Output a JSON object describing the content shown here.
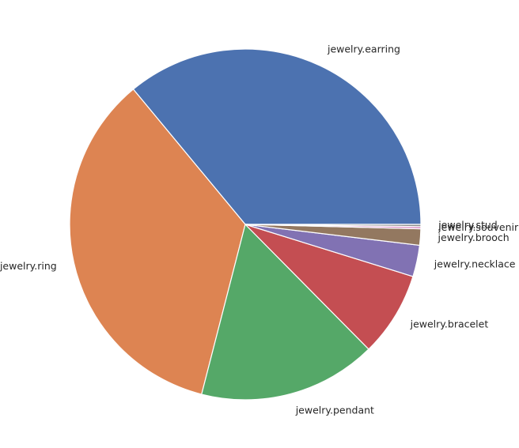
{
  "chart_data": {
    "type": "pie",
    "title": "",
    "start_angle_deg": 0,
    "direction": "counterclockwise",
    "slices": [
      {
        "label": "jewelry.earring",
        "value": 36.0,
        "color": "#4c72b0"
      },
      {
        "label": "jewelry.ring",
        "value": 35.0,
        "color": "#dd8452"
      },
      {
        "label": "jewelry.pendant",
        "value": 16.4,
        "color": "#55a868"
      },
      {
        "label": "jewelry.bracelet",
        "value": 7.8,
        "color": "#c44e52"
      },
      {
        "label": "jewelry.necklace",
        "value": 2.9,
        "color": "#8172b3"
      },
      {
        "label": "jewelry.brooch",
        "value": 1.5,
        "color": "#937860"
      },
      {
        "label": "jewelry.souvenir",
        "value": 0.2,
        "color": "#da8bc3"
      },
      {
        "label": "jewelry.stud",
        "value": 0.2,
        "color": "#8c8c8c"
      }
    ]
  }
}
